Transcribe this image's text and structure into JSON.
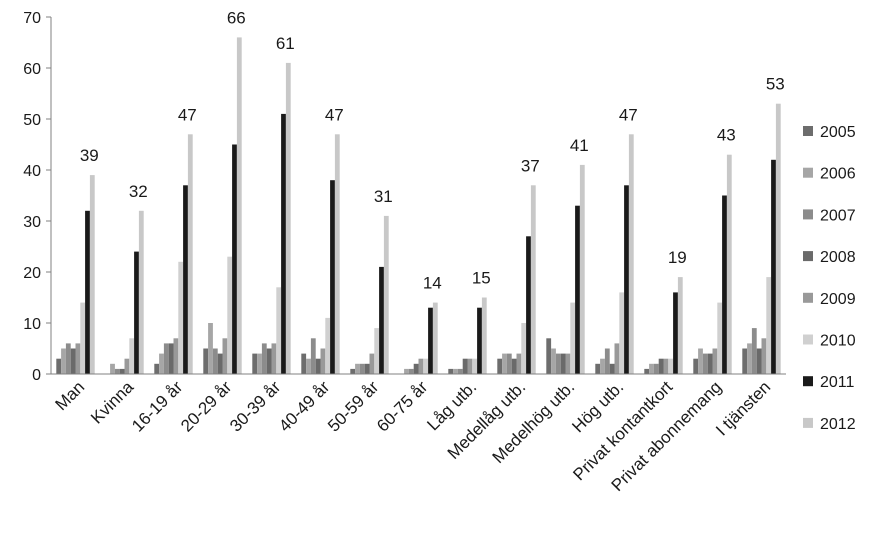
{
  "chart_data": {
    "type": "bar",
    "title": "",
    "xlabel": "",
    "ylabel": "",
    "ylim": [
      0,
      70
    ],
    "yticks": [
      0,
      10,
      20,
      30,
      40,
      50,
      60,
      70
    ],
    "grid": false,
    "legend_position": "right",
    "categories": [
      "Man",
      "Kvinna",
      "16-19 år",
      "20-29 år",
      "30-39 år",
      "40-49 år",
      "50-59 år",
      "60-75 år",
      "Låg utb.",
      "Medellåg utb.",
      "Medelhög utb.",
      "Hög utb.",
      "Privat kontantkort",
      "Privat abonnemang",
      "I tjänsten"
    ],
    "series": [
      {
        "name": "2005",
        "color": "#6d6d6d",
        "values": [
          3,
          0,
          2,
          5,
          4,
          4,
          1,
          0,
          1,
          3,
          7,
          2,
          1,
          3,
          5
        ]
      },
      {
        "name": "2006",
        "color": "#a6a6a6",
        "values": [
          5,
          2,
          4,
          10,
          4,
          3,
          2,
          1,
          1,
          4,
          5,
          3,
          2,
          5,
          6
        ]
      },
      {
        "name": "2007",
        "color": "#8c8c8c",
        "values": [
          6,
          1,
          6,
          5,
          6,
          7,
          2,
          1,
          1,
          4,
          4,
          5,
          2,
          4,
          9
        ]
      },
      {
        "name": "2008",
        "color": "#6a6a6a",
        "values": [
          5,
          1,
          6,
          4,
          5,
          3,
          2,
          2,
          3,
          3,
          4,
          2,
          3,
          4,
          5
        ]
      },
      {
        "name": "2009",
        "color": "#999999",
        "values": [
          6,
          3,
          7,
          7,
          6,
          5,
          4,
          3,
          3,
          4,
          4,
          6,
          3,
          5,
          7
        ]
      },
      {
        "name": "2010",
        "color": "#d0d0d0",
        "values": [
          14,
          7,
          22,
          23,
          17,
          11,
          9,
          3,
          3,
          10,
          14,
          16,
          3,
          14,
          19
        ]
      },
      {
        "name": "2011",
        "color": "#1a1a1a",
        "values": [
          32,
          24,
          37,
          45,
          51,
          38,
          21,
          13,
          13,
          27,
          33,
          37,
          16,
          35,
          42
        ]
      },
      {
        "name": "2012",
        "color": "#c8c8c8",
        "values": [
          39,
          32,
          47,
          66,
          61,
          47,
          31,
          14,
          15,
          37,
          41,
          47,
          19,
          43,
          53
        ]
      }
    ],
    "data_labels": [
      "39",
      "32",
      "47",
      "66",
      "61",
      "47",
      "31",
      "14",
      "15",
      "37",
      "41",
      "47",
      "19",
      "43",
      "53"
    ]
  }
}
